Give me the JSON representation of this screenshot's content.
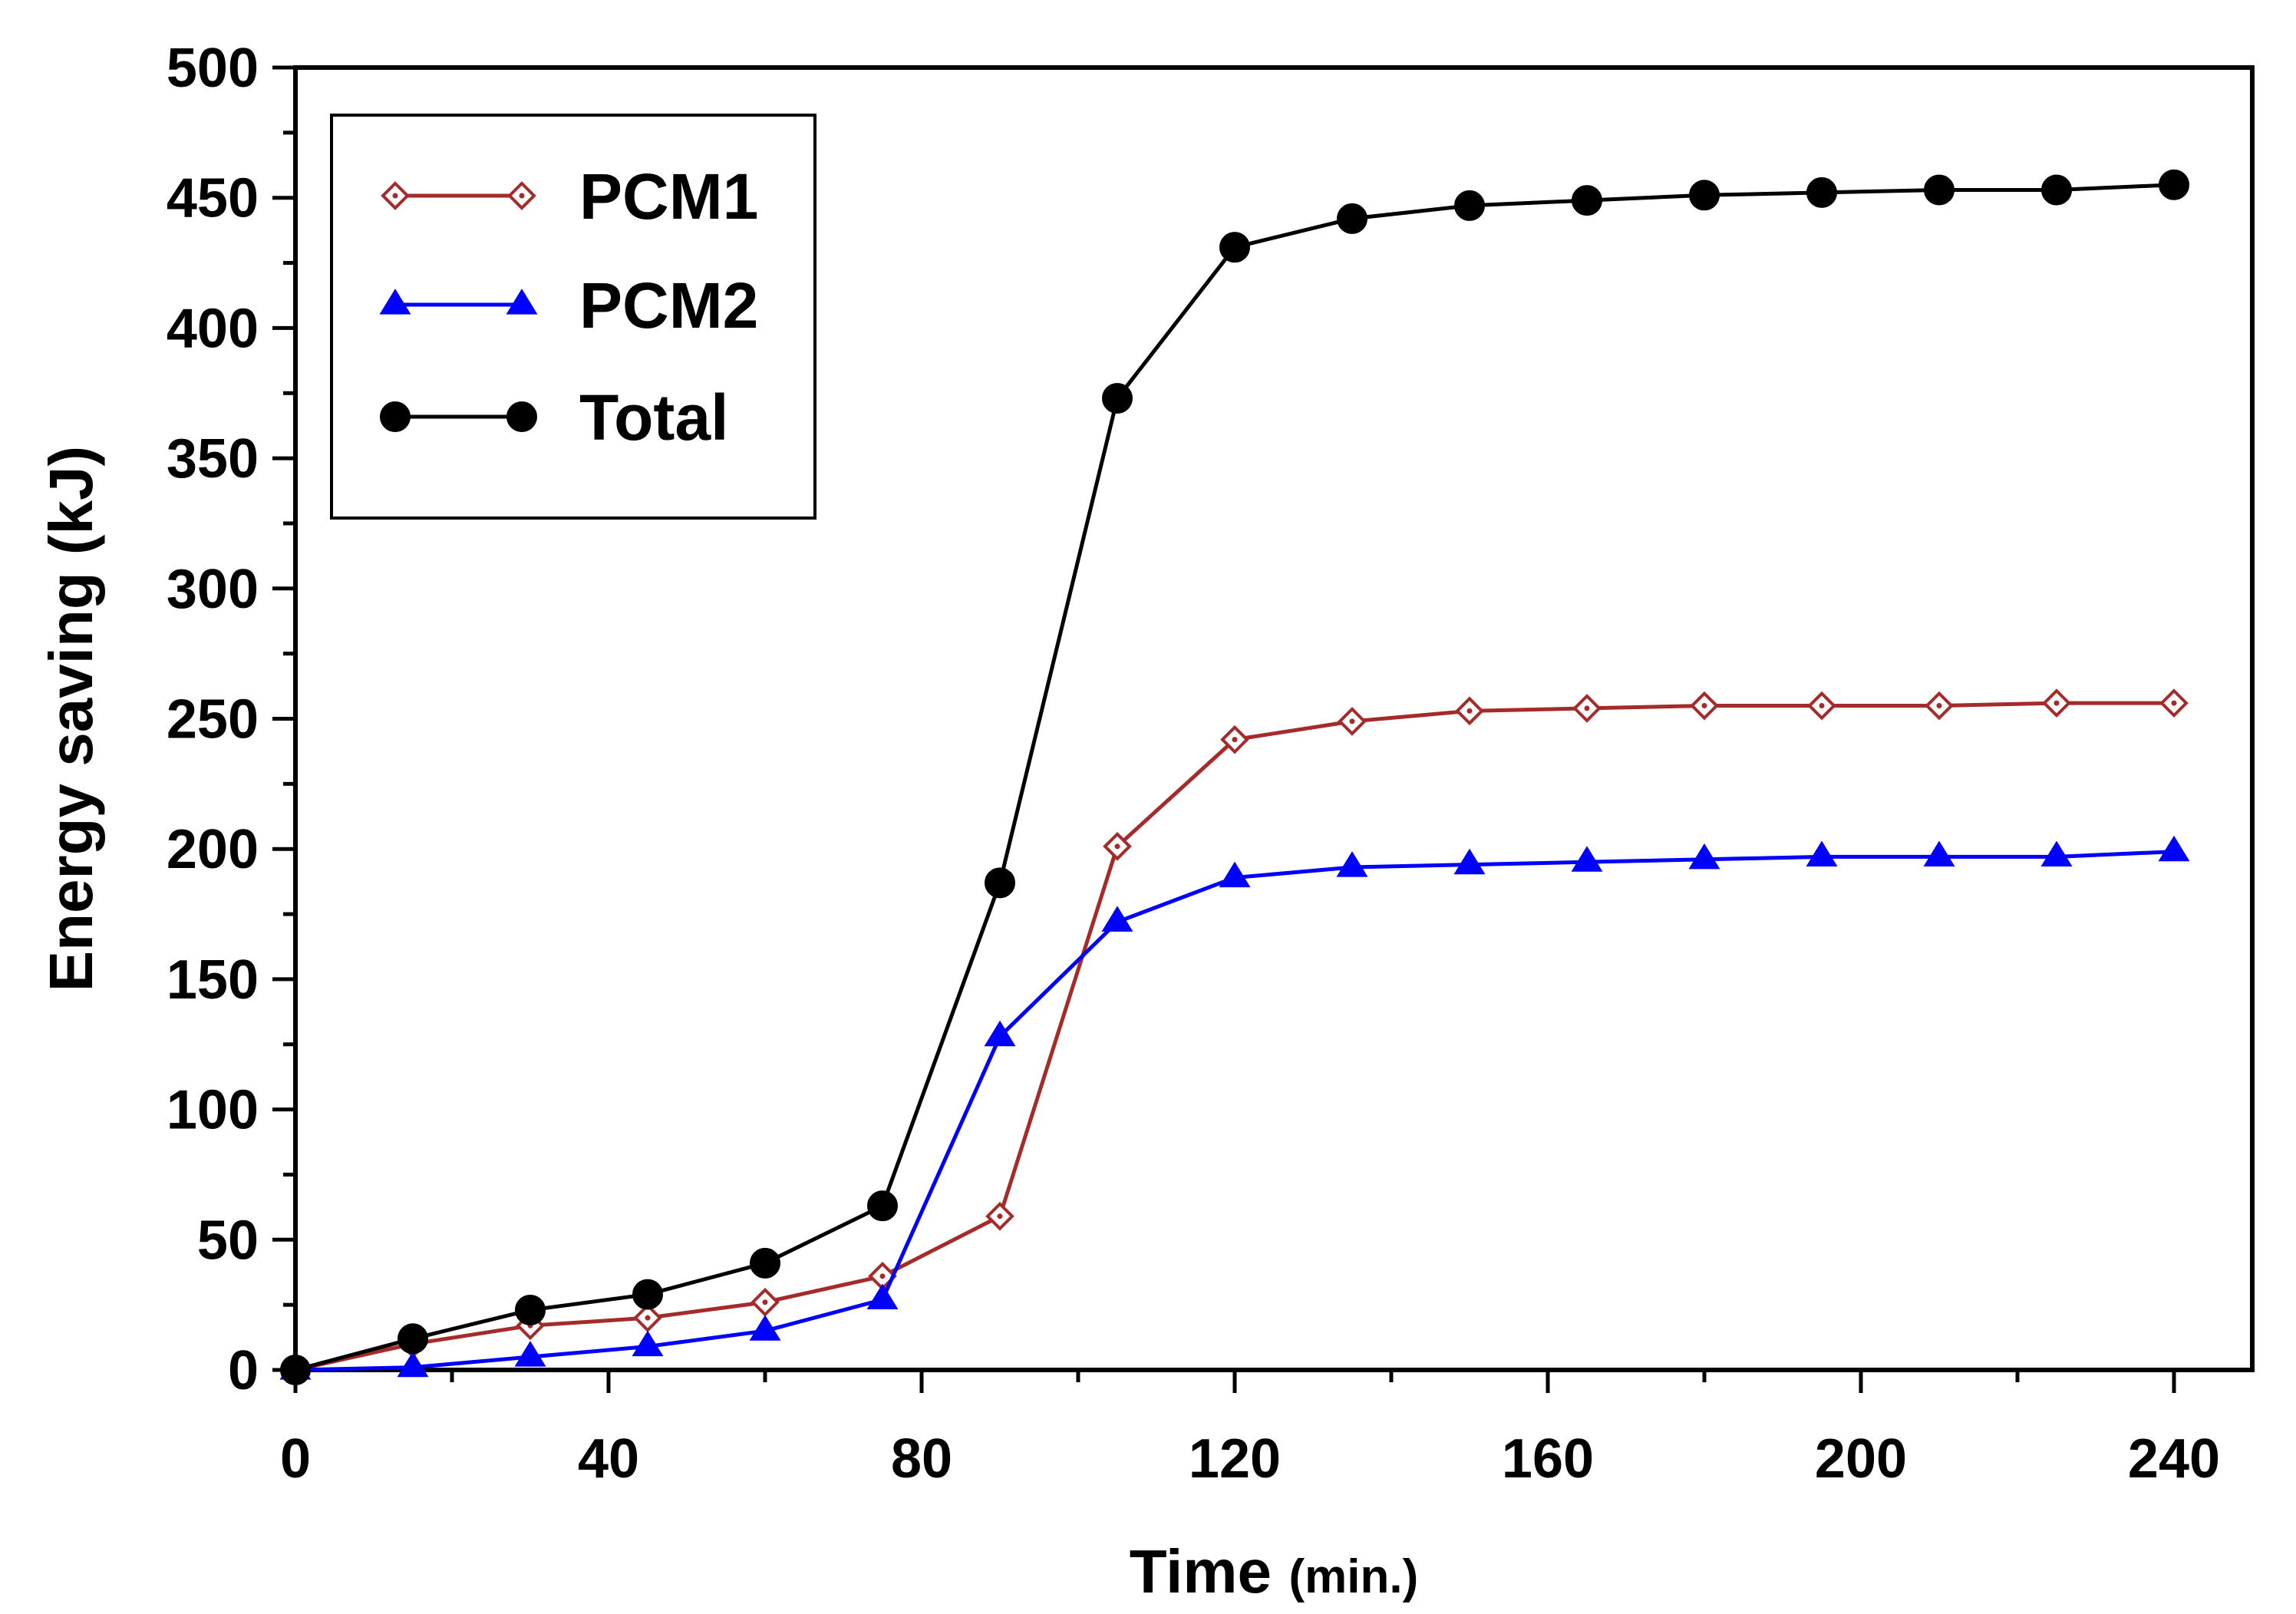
{
  "chart_data": {
    "type": "line",
    "title": "",
    "xlabel": "Time",
    "xlabel_unit": "(min.)",
    "ylabel": "Energy saving (kJ)",
    "xlim": [
      0,
      250
    ],
    "ylim": [
      0,
      500
    ],
    "xticks": [
      0,
      40,
      80,
      120,
      160,
      200,
      240
    ],
    "yticks": [
      0,
      50,
      100,
      150,
      200,
      250,
      300,
      350,
      400,
      450,
      500
    ],
    "grid": false,
    "legend_position": "top-left",
    "x": [
      0,
      15,
      30,
      45,
      60,
      75,
      90,
      105,
      120,
      135,
      150,
      165,
      180,
      195,
      210,
      225,
      240
    ],
    "series": [
      {
        "name": "PCM1",
        "color": "#A52A2A",
        "marker": "diamond-open",
        "values": [
          0,
          10,
          17,
          20,
          26,
          36,
          59,
          201,
          242,
          249,
          253,
          254,
          255,
          255,
          255,
          256,
          256
        ]
      },
      {
        "name": "PCM2",
        "color": "#0000FF",
        "marker": "triangle",
        "values": [
          0,
          1,
          5,
          9,
          15,
          27,
          128,
          172,
          189,
          193,
          194,
          195,
          196,
          197,
          197,
          197,
          199
        ]
      },
      {
        "name": "Total",
        "color": "#000000",
        "marker": "circle",
        "values": [
          0,
          12,
          23,
          29,
          41,
          63,
          187,
          373,
          431,
          442,
          447,
          449,
          451,
          452,
          453,
          453,
          455
        ]
      }
    ]
  }
}
